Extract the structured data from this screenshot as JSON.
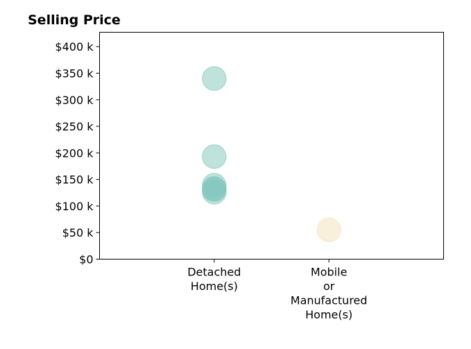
{
  "chart_data": {
    "type": "scatter",
    "title": "Selling Price",
    "xlabel": "",
    "ylabel": "",
    "categories": [
      [
        "Detached",
        "Home(s)"
      ],
      [
        "Mobile",
        "or",
        "Manufactured",
        "Home(s)"
      ]
    ],
    "yticks": [
      0,
      50000,
      100000,
      150000,
      200000,
      250000,
      300000,
      350000,
      400000
    ],
    "ytick_labels": [
      "$0",
      "$50 k",
      "$100 k",
      "$150 k",
      "$200 k",
      "$250 k",
      "$300 k",
      "$350 k",
      "$400 k"
    ],
    "ylim": [
      0,
      427000
    ],
    "xlim": [
      -1,
      2
    ],
    "grid": false,
    "series": [
      {
        "color": "#80c6bc",
        "points": [
          {
            "category": 0,
            "value": 340000
          },
          {
            "category": 0,
            "value": 193000
          },
          {
            "category": 0,
            "value": 139000
          },
          {
            "category": 0,
            "value": 133000
          },
          {
            "category": 0,
            "value": 131000
          },
          {
            "category": 0,
            "value": 126000
          }
        ]
      },
      {
        "color": "#f4e2ba",
        "points": [
          {
            "category": 1,
            "value": 55000
          }
        ]
      }
    ]
  }
}
